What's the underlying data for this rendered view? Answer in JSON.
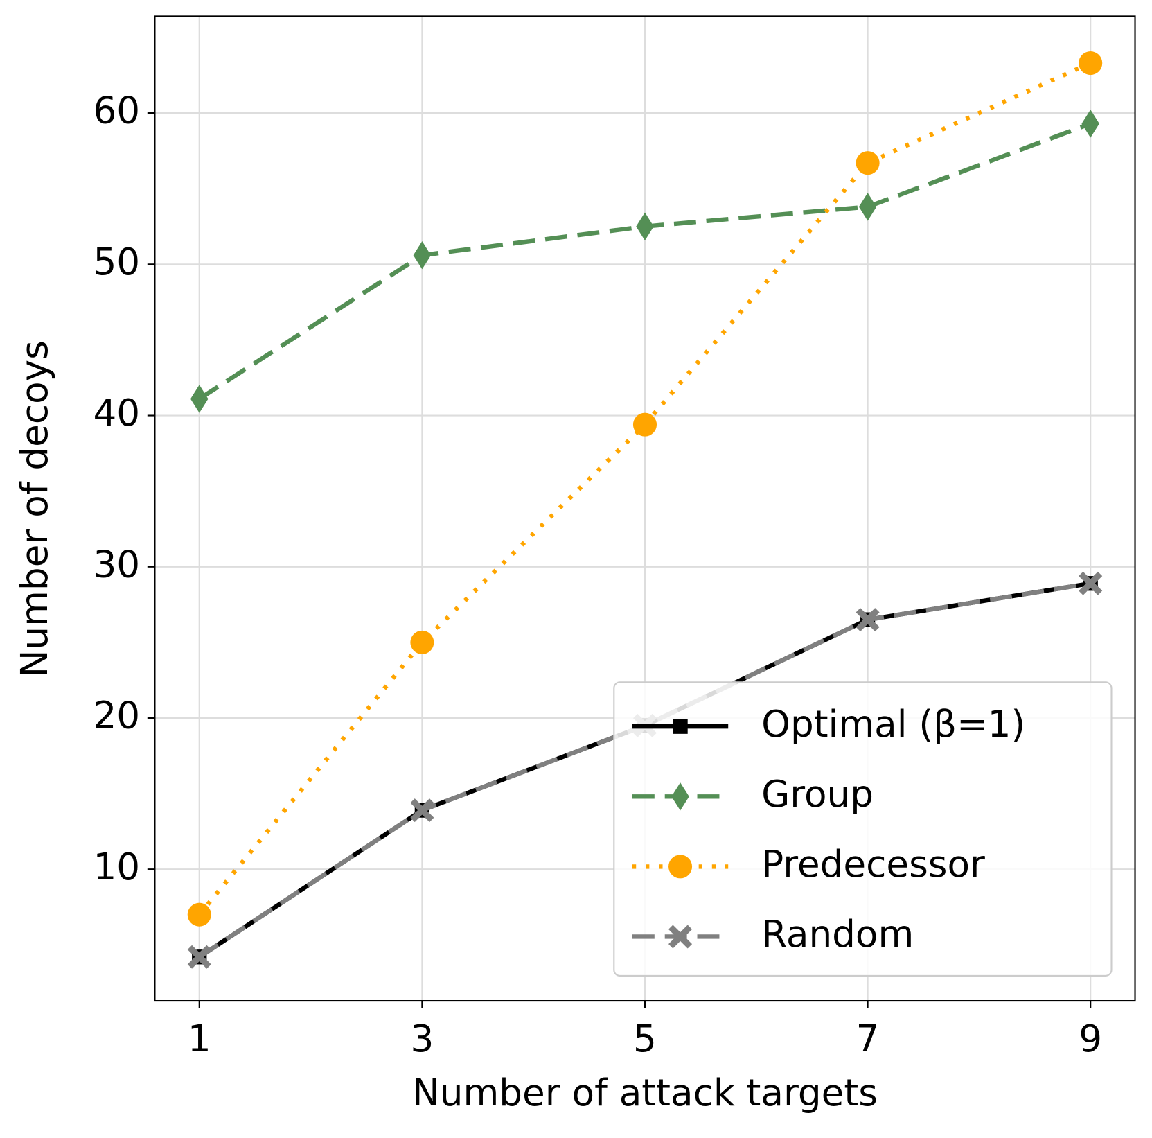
{
  "chart_data": {
    "type": "line",
    "x_label": "Number of attack targets",
    "y_label": "Number of decoys",
    "x": [
      1,
      3,
      5,
      7,
      9
    ],
    "series": [
      {
        "name": "Optimal (β=1)",
        "color": "#000000",
        "dash": "solid",
        "marker": "square",
        "values": [
          4.2,
          13.9,
          19.5,
          26.5,
          28.9
        ]
      },
      {
        "name": "Group",
        "color": "#548f55",
        "dash": "dashed",
        "marker": "diamond",
        "values": [
          41.1,
          50.6,
          52.5,
          53.8,
          59.3
        ]
      },
      {
        "name": "Predecessor",
        "color": "#ffa500",
        "dash": "dotted",
        "marker": "circle",
        "values": [
          7.0,
          25.0,
          39.4,
          56.7,
          63.3
        ]
      },
      {
        "name": "Random",
        "color": "#808080",
        "dash": "dashed",
        "marker": "x",
        "values": [
          4.2,
          13.9,
          19.5,
          26.5,
          28.9
        ]
      }
    ],
    "xlim": [
      0.6,
      9.4
    ],
    "ylim": [
      1.3,
      66.4
    ],
    "xticks": [
      1,
      3,
      5,
      7,
      9
    ],
    "yticks": [
      10,
      20,
      30,
      40,
      50,
      60
    ],
    "grid": true,
    "legend": "lower right"
  }
}
